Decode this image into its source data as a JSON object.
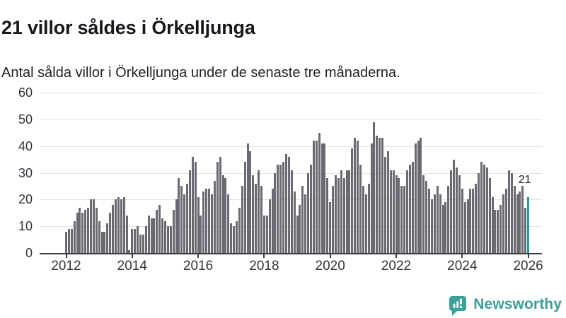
{
  "header": {},
  "footer": {
    "brand": "Newsworthy"
  },
  "colors": {
    "bar": "#6b6a72",
    "highlight": "#18a39b",
    "grid": "#e3e3e7",
    "axis": "#3d3d44",
    "tick_label": "#33333a",
    "title": "#17171c",
    "brand": "#3a9f98"
  },
  "chart_data": {
    "type": "bar",
    "title": "21 villor såldes i Örkelljunga",
    "subtitle": "Antal sålda villor i Örkelljunga under de senaste tre månaderna.",
    "ylim": [
      0,
      60
    ],
    "y_ticks": [
      0,
      10,
      20,
      30,
      40,
      50,
      60
    ],
    "x_tick_labels": [
      "2012",
      "2014",
      "2016",
      "2018",
      "2020",
      "2022",
      "2024",
      "2026"
    ],
    "months_per_x_tick": 24,
    "grid": true,
    "legend": "none",
    "start_label": "2012",
    "values": [
      8,
      9,
      9,
      12,
      15,
      17,
      15,
      16,
      17,
      20,
      20,
      17,
      12,
      8,
      8,
      11,
      15,
      18,
      20,
      21,
      20,
      21,
      14,
      1,
      9,
      9,
      10,
      7,
      7,
      10,
      14,
      13,
      13,
      16,
      18,
      13,
      12,
      10,
      10,
      16,
      20,
      28,
      25,
      22,
      26,
      31,
      36,
      34,
      21,
      14,
      23,
      24,
      24,
      22,
      27,
      34,
      36,
      29,
      28,
      22,
      11,
      10,
      12,
      17,
      25,
      34,
      41,
      38,
      29,
      26,
      31,
      25,
      14,
      14,
      20,
      24,
      30,
      33,
      33,
      34,
      37,
      36,
      31,
      23,
      14,
      18,
      25,
      22,
      30,
      33,
      42,
      42,
      45,
      41,
      41,
      28,
      19,
      25,
      29,
      28,
      31,
      28,
      31,
      31,
      39,
      43,
      42,
      33,
      25,
      22,
      26,
      41,
      49,
      44,
      43,
      43,
      36,
      38,
      31,
      31,
      29,
      28,
      25,
      25,
      31,
      33,
      34,
      41,
      42,
      43,
      29,
      27,
      24,
      20,
      22,
      25,
      22,
      18,
      19,
      25,
      31,
      35,
      32,
      29,
      24,
      19,
      20,
      24,
      24,
      26,
      30,
      34,
      33,
      32,
      28,
      21,
      16,
      16,
      18,
      22,
      24,
      31,
      30,
      25,
      22,
      23,
      25,
      17,
      21
    ],
    "highlight_last": true,
    "last_value_label": "21"
  }
}
